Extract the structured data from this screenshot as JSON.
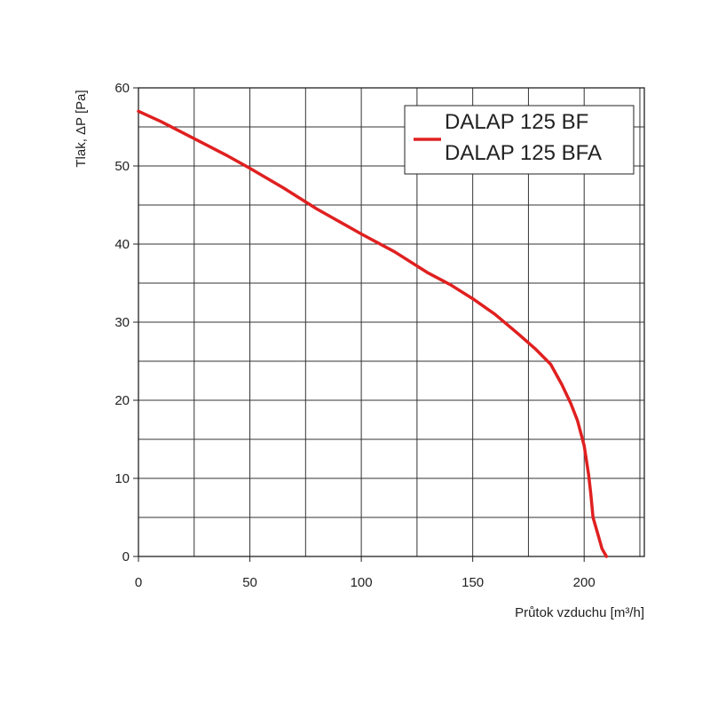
{
  "chart_data": {
    "type": "line",
    "xlabel": "Průtok vzduchu [m³/h]",
    "ylabel": "Tlak, ΔP [Pa]",
    "xlim": [
      0,
      227
    ],
    "ylim": [
      0,
      60
    ],
    "x_ticks": [
      0,
      50,
      100,
      150,
      200
    ],
    "y_ticks": [
      0,
      10,
      20,
      30,
      40,
      50,
      60
    ],
    "x_grid_step": 25,
    "y_grid_step": 5,
    "grid": true,
    "legend_position": "top-right",
    "series": [
      {
        "name": "DALAP 125 BF",
        "name2": "DALAP 125 BFA",
        "color": "#e02020",
        "x": [
          0,
          10,
          25,
          40,
          50,
          65,
          80,
          100,
          115,
          130,
          140,
          150,
          160,
          170,
          178,
          185,
          190,
          194,
          197,
          200,
          202,
          203,
          204,
          206,
          208,
          210
        ],
        "y": [
          57,
          55.7,
          53.5,
          51.3,
          49.7,
          47.2,
          44.5,
          41.3,
          39,
          36.3,
          34.8,
          33,
          31,
          28.6,
          26.6,
          24.6,
          22,
          19.6,
          17.4,
          14.2,
          10.5,
          8,
          5,
          3,
          1,
          0
        ]
      }
    ]
  }
}
